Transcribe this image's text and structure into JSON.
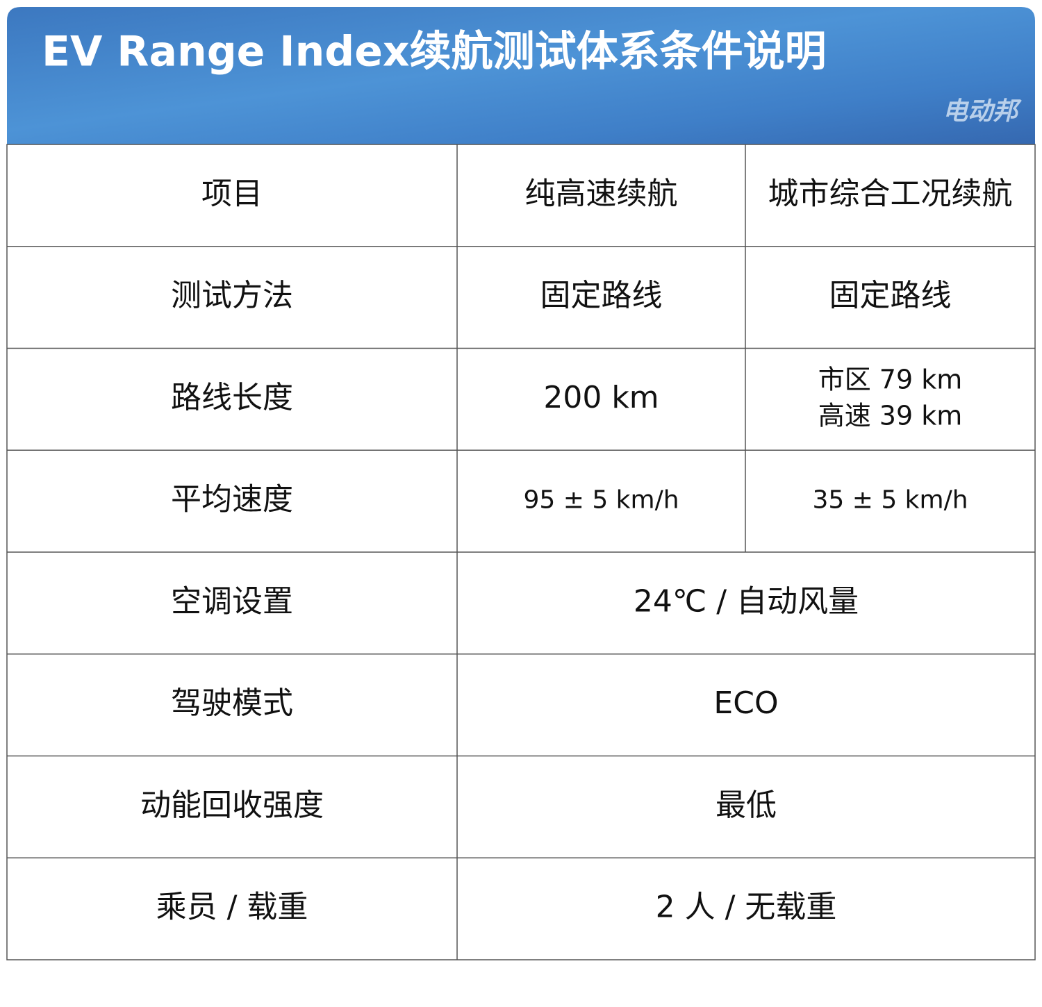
{
  "header": {
    "title": "EV Range Index续航测试体系条件说明",
    "watermark": "电动邦"
  },
  "table": {
    "columns": [
      "项目",
      "纯高速续航",
      "城市综合工况续航"
    ],
    "rows": [
      [
        "测试方法",
        "固定路线",
        "固定路线"
      ],
      [
        "路线长度",
        "200 km",
        [
          "市区 79 km",
          "高速 39 km"
        ]
      ],
      [
        "平均速度",
        "95 ± 5 km/h",
        "35 ± 5 km/h"
      ],
      [
        "空调设置",
        "24℃ / 自动风量"
      ],
      [
        "驾驶模式",
        "ECO"
      ],
      [
        "动能回收强度",
        "最低"
      ],
      [
        "乘员 / 载重",
        "2 人 / 无载重"
      ]
    ]
  }
}
